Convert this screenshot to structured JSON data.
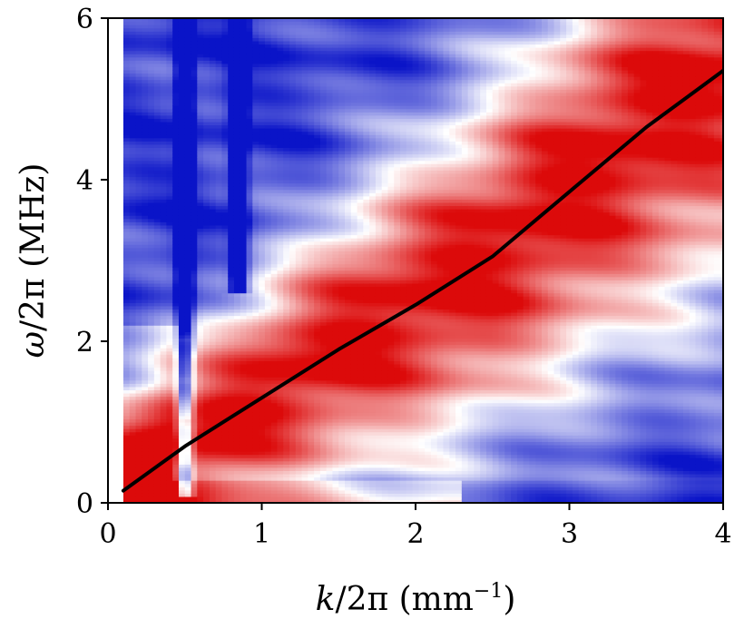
{
  "chart_data": {
    "type": "heatmap",
    "title": "",
    "xlabel": {
      "var": "k",
      "rest": "/2π (mm",
      "exp": "−1",
      "close": ")"
    },
    "ylabel": {
      "var": "ω",
      "rest": "/2π (MHz)"
    },
    "xlim": [
      0,
      4
    ],
    "ylim": [
      0,
      6
    ],
    "data_xmin": 0.1,
    "xticks": [
      0,
      1,
      2,
      3,
      4
    ],
    "yticks": [
      0,
      2,
      4,
      6
    ],
    "xtick_labels": [
      "0",
      "1",
      "2",
      "3",
      "4"
    ],
    "ytick_labels": [
      "0",
      "2",
      "4",
      "6"
    ],
    "colormap": {
      "negative": "#0a14c8",
      "zero": "#ffffff",
      "positive": "#dc0a0a"
    },
    "grid": false,
    "dispersion_curve": {
      "name": "dispersion",
      "color": "#000000",
      "x": [
        0.1,
        0.5,
        1.0,
        1.5,
        2.0,
        2.5,
        3.0,
        3.5,
        4.0
      ],
      "y": [
        0.15,
        0.7,
        1.3,
        1.9,
        2.45,
        3.05,
        3.85,
        4.65,
        5.35
      ]
    },
    "ridge_features": [
      {
        "type": "ridge",
        "x_center": 0.5,
        "y_from": 0.1,
        "y_to": 6.0,
        "sign": -1
      },
      {
        "type": "ridge",
        "x_center": 0.85,
        "y_from": 2.6,
        "y_to": 6.0,
        "sign": -1
      }
    ]
  }
}
